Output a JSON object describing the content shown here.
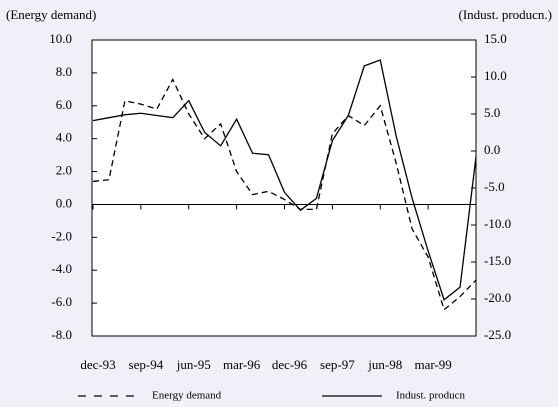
{
  "chart_data": {
    "type": "line",
    "ylabel": "(Energy demand)",
    "y2label": "(Indust. producn.)",
    "categories": [
      "dec-93",
      null,
      null,
      "sep-94",
      null,
      null,
      "jun-95",
      null,
      null,
      "mar-96",
      null,
      null,
      "dec-96",
      null,
      null,
      "sep-97",
      null,
      null,
      "jun-98",
      null,
      null,
      "mar-99",
      null,
      null,
      null
    ],
    "ylim": [
      -8,
      10
    ],
    "yticks": [
      {
        "value": -8,
        "label": "-8.0"
      },
      {
        "value": -6,
        "label": "-6.0"
      },
      {
        "value": -4,
        "label": "-4.0"
      },
      {
        "value": -2,
        "label": "-2.0"
      },
      {
        "value": 0,
        "label": "0.0"
      },
      {
        "value": 2,
        "label": "2.0"
      },
      {
        "value": 4,
        "label": "4.0"
      },
      {
        "value": 6,
        "label": "6.0"
      },
      {
        "value": 8,
        "label": "8.0"
      },
      {
        "value": 10,
        "label": "10.0"
      }
    ],
    "y2lim": [
      -25,
      15
    ],
    "y2ticks": [
      {
        "value": -25,
        "label": "-25.0"
      },
      {
        "value": -20,
        "label": "-20.0"
      },
      {
        "value": -15,
        "label": "-15.0"
      },
      {
        "value": -10,
        "label": "-10.0"
      },
      {
        "value": -5,
        "label": "-5.0"
      },
      {
        "value": 0,
        "label": "0.0"
      },
      {
        "value": 5,
        "label": "5.0"
      },
      {
        "value": 10,
        "label": "10.0"
      },
      {
        "value": 15,
        "label": "15.0"
      }
    ],
    "series": [
      {
        "name": "Energy demand",
        "color": "#000000",
        "dash": true,
        "values": [
          1.4,
          1.5,
          6.3,
          6.1,
          5.8,
          7.6,
          5.5,
          4.0,
          4.9,
          2.0,
          0.6,
          0.8,
          0.3,
          -0.3,
          -0.3,
          4.3,
          5.4,
          4.8,
          6.0,
          2.5,
          -1.5,
          -3.2,
          -6.4,
          -5.6,
          -4.6
        ]
      },
      {
        "name": "Indust. producn",
        "color": "#000000",
        "dash": false,
        "axis": "y2",
        "values": [
          4.1,
          4.5,
          4.9,
          5.1,
          4.8,
          4.5,
          6.8,
          2.5,
          0.7,
          4.3,
          -0.3,
          -0.5,
          -5.6,
          -8.0,
          -6.4,
          1.4,
          4.8,
          11.5,
          12.3,
          2.0,
          -6.4,
          -13.5,
          -20.1,
          -18.4,
          -0.8
        ]
      }
    ]
  }
}
